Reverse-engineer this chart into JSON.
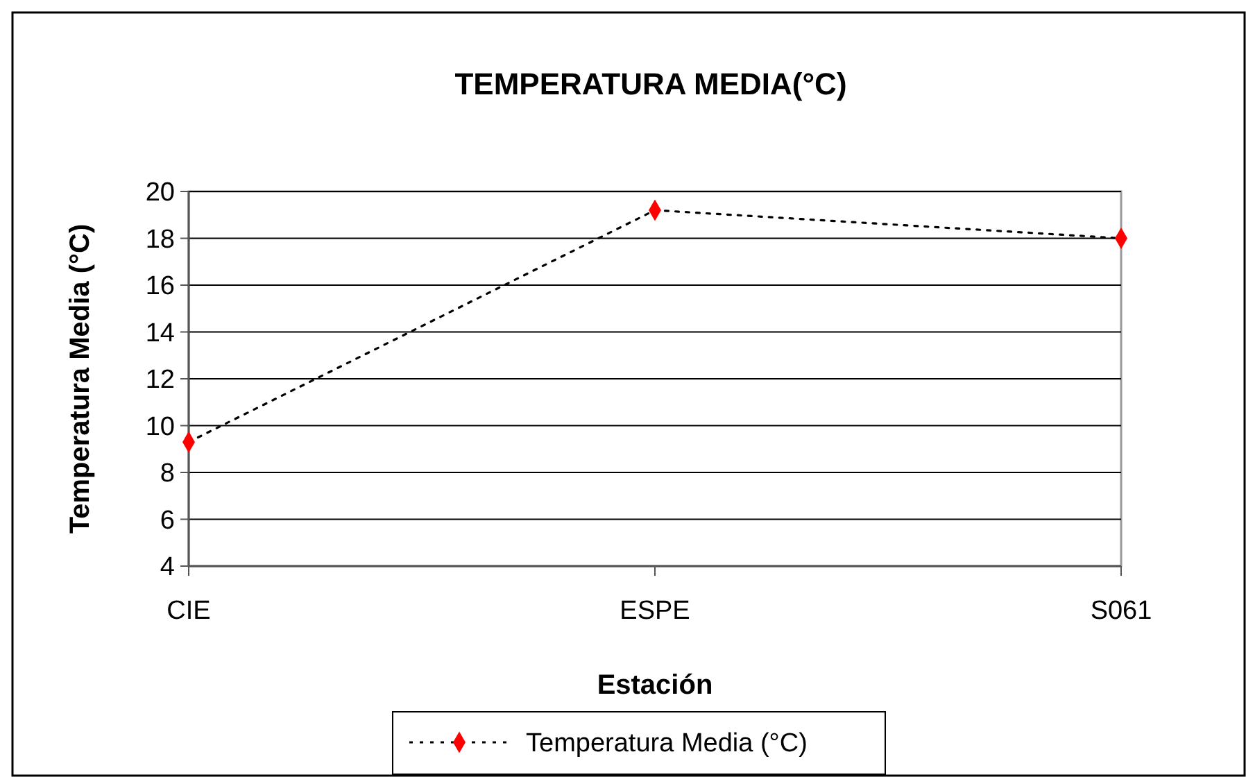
{
  "chart_data": {
    "type": "line",
    "title": "TEMPERATURA MEDIA(°C)",
    "xlabel": "Estación",
    "ylabel": "Temperatura Media (°C)",
    "categories": [
      "CIE",
      "ESPE",
      "S061"
    ],
    "series": [
      {
        "name": "Temperatura Media (°C)",
        "color": "#ff0000",
        "values": [
          9.3,
          19.2,
          18.0
        ]
      }
    ],
    "ylim": [
      4,
      20
    ],
    "yticks": [
      4,
      6,
      8,
      10,
      12,
      14,
      16,
      18,
      20
    ],
    "grid": "y",
    "legend": "bottom",
    "marker": "diamond",
    "line_style": "dotted"
  }
}
